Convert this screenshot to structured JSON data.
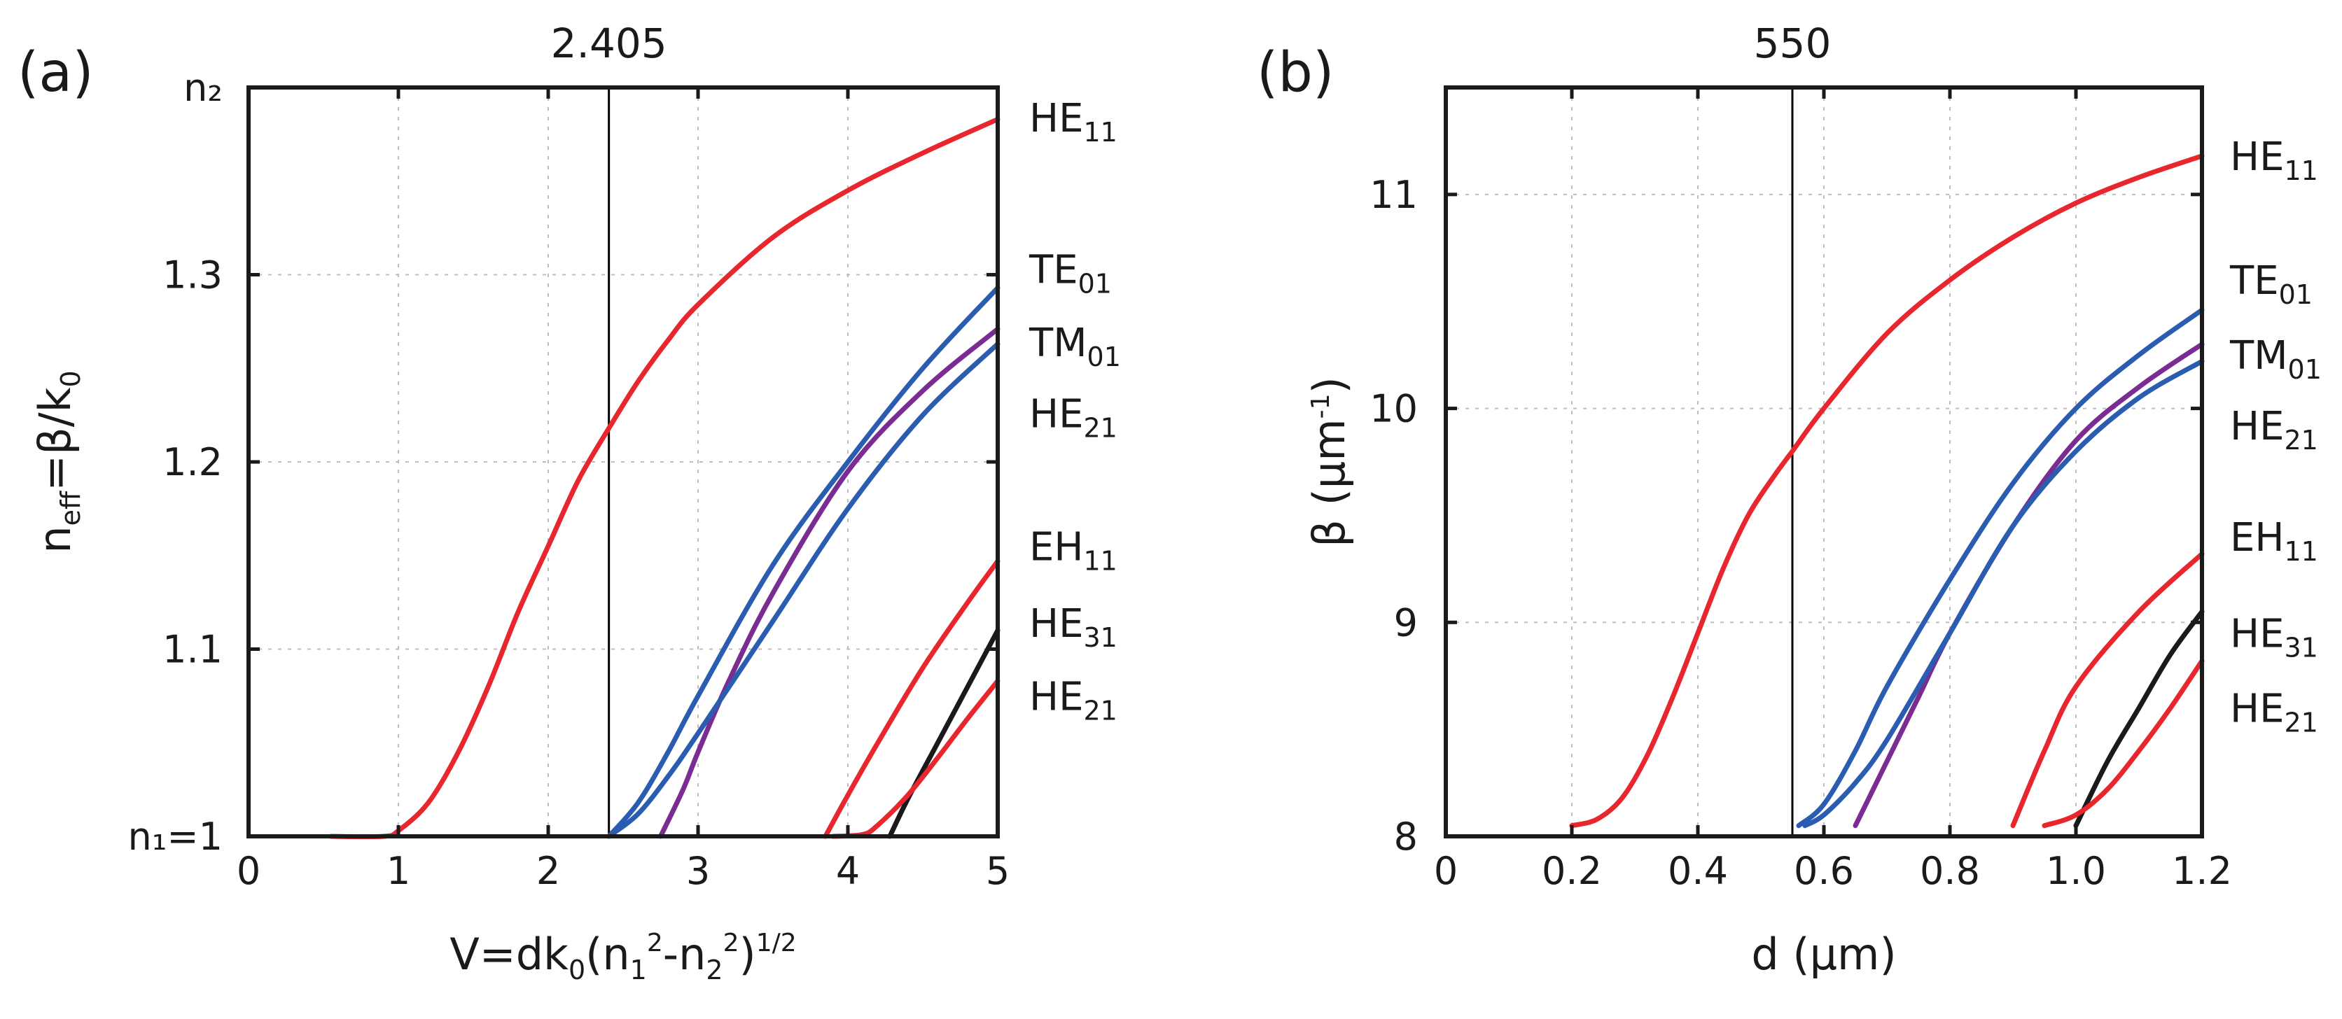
{
  "colors": {
    "red": "#e8262d",
    "blue": "#2a5db0",
    "purple": "#7b2c93",
    "black": "#1a1a1a"
  },
  "chart_data": [
    {
      "type": "line",
      "panel_label": "(a)",
      "xlabel": "V=dk0(n1²-n2²)1/2",
      "ylabel": "neff=β/k0",
      "xlim": [
        0,
        5
      ],
      "ylim": [
        1.0,
        1.4
      ],
      "xticks": [
        0,
        1,
        2,
        3,
        4,
        5
      ],
      "xtick_labels": [
        "0",
        "1",
        "2",
        "3",
        "4",
        "5"
      ],
      "yticks": [
        1.0,
        1.1,
        1.2,
        1.3,
        1.4
      ],
      "ytick_labels": [
        "n₁=1",
        "1.1",
        "1.2",
        "1.3",
        "n₂"
      ],
      "vline": {
        "x": 2.405,
        "label": "2.405"
      },
      "series": [
        {
          "name": "HE11",
          "color": "red",
          "x": [
            0.55,
            0.9,
            1.0,
            1.2,
            1.4,
            1.6,
            1.8,
            2.0,
            2.2,
            2.405,
            2.6,
            2.8,
            3.0,
            3.5,
            4.0,
            4.5,
            5.0
          ],
          "y": [
            1.0,
            1.0,
            1.003,
            1.018,
            1.045,
            1.08,
            1.12,
            1.155,
            1.19,
            1.218,
            1.243,
            1.265,
            1.284,
            1.32,
            1.345,
            1.365,
            1.383
          ]
        },
        {
          "name": "TE01",
          "color": "blue",
          "x": [
            2.405,
            2.6,
            2.8,
            3.0,
            3.5,
            4.0,
            4.5,
            5.0
          ],
          "y": [
            1.0,
            1.018,
            1.045,
            1.075,
            1.145,
            1.2,
            1.25,
            1.293
          ]
        },
        {
          "name": "TM01",
          "color": "purple",
          "x": [
            2.75,
            2.9,
            3.0,
            3.2,
            3.5,
            4.0,
            4.5,
            5.0
          ],
          "y": [
            1.0,
            1.025,
            1.045,
            1.082,
            1.13,
            1.195,
            1.238,
            1.271
          ]
        },
        {
          "name": "HE21",
          "color": "blue",
          "x": [
            2.405,
            2.6,
            2.8,
            3.0,
            3.5,
            4.0,
            4.5,
            5.0
          ],
          "y": [
            1.0,
            1.012,
            1.032,
            1.055,
            1.115,
            1.175,
            1.225,
            1.263
          ]
        },
        {
          "name": "EH11",
          "color": "red",
          "x": [
            3.85,
            4.0,
            4.2,
            4.5,
            4.8,
            5.0
          ],
          "y": [
            1.0,
            1.022,
            1.05,
            1.09,
            1.125,
            1.147
          ]
        },
        {
          "name": "HE31",
          "color": "black",
          "x": [
            4.28,
            4.4,
            4.6,
            4.8,
            5.0
          ],
          "y": [
            1.0,
            1.02,
            1.05,
            1.08,
            1.11
          ]
        },
        {
          "name": "HE21",
          "color": "red",
          "x": [
            3.9,
            4.1,
            4.2,
            4.4,
            4.6,
            4.8,
            5.0
          ],
          "y": [
            1.0,
            1.001,
            1.006,
            1.022,
            1.042,
            1.063,
            1.083
          ]
        }
      ],
      "mode_labels": [
        {
          "main": "HE",
          "sub": "11",
          "y": 1.384
        },
        {
          "main": "TE",
          "sub": "01",
          "y": 1.303
        },
        {
          "main": "TM",
          "sub": "01",
          "y": 1.264
        },
        {
          "main": "HE",
          "sub": "21",
          "y": 1.226
        },
        {
          "main": "EH",
          "sub": "11",
          "y": 1.155
        },
        {
          "main": "HE",
          "sub": "31",
          "y": 1.114
        },
        {
          "main": "HE",
          "sub": "21",
          "y": 1.075
        }
      ]
    },
    {
      "type": "line",
      "panel_label": "(b)",
      "xlabel": "d (μm)",
      "ylabel": "β (μm-1)",
      "xlim": [
        0,
        1.2
      ],
      "ylim": [
        8,
        11.5
      ],
      "xticks": [
        0,
        0.2,
        0.4,
        0.6,
        0.8,
        1.0,
        1.2
      ],
      "xtick_labels": [
        "0",
        "0.2",
        "0.4",
        "0.6",
        "0.8",
        "1.0",
        "1.2"
      ],
      "yticks": [
        8,
        9,
        10,
        11
      ],
      "ytick_labels": [
        "8",
        "9",
        "10",
        "11"
      ],
      "vline": {
        "x": 0.55,
        "label": "550"
      },
      "series": [
        {
          "name": "HE11",
          "color": "red",
          "x": [
            0.2,
            0.24,
            0.28,
            0.32,
            0.36,
            0.4,
            0.44,
            0.48,
            0.52,
            0.55,
            0.6,
            0.7,
            0.8,
            0.9,
            1.0,
            1.1,
            1.2
          ],
          "y": [
            8.05,
            8.08,
            8.18,
            8.38,
            8.65,
            8.95,
            9.25,
            9.5,
            9.68,
            9.8,
            10.0,
            10.35,
            10.6,
            10.8,
            10.96,
            11.08,
            11.18
          ]
        },
        {
          "name": "TE01",
          "color": "blue",
          "x": [
            0.56,
            0.6,
            0.65,
            0.7,
            0.8,
            0.9,
            1.0,
            1.1,
            1.2
          ],
          "y": [
            8.05,
            8.15,
            8.4,
            8.7,
            9.2,
            9.65,
            10.0,
            10.25,
            10.46
          ]
        },
        {
          "name": "TM01",
          "color": "purple",
          "x": [
            0.65,
            0.7,
            0.75,
            0.8,
            0.9,
            1.0,
            1.1,
            1.2
          ],
          "y": [
            8.05,
            8.35,
            8.65,
            8.95,
            9.45,
            9.85,
            10.1,
            10.3
          ]
        },
        {
          "name": "HE21",
          "color": "blue",
          "x": [
            0.57,
            0.6,
            0.65,
            0.7,
            0.8,
            0.9,
            1.0,
            1.1,
            1.2
          ],
          "y": [
            8.05,
            8.1,
            8.25,
            8.45,
            8.95,
            9.45,
            9.8,
            10.05,
            10.22
          ]
        },
        {
          "name": "EH11",
          "color": "red",
          "x": [
            0.9,
            0.95,
            1.0,
            1.1,
            1.2
          ],
          "y": [
            8.05,
            8.4,
            8.7,
            9.05,
            9.32
          ]
        },
        {
          "name": "HE31",
          "color": "black",
          "x": [
            1.0,
            1.05,
            1.1,
            1.15,
            1.2
          ],
          "y": [
            8.05,
            8.35,
            8.6,
            8.85,
            9.05
          ]
        },
        {
          "name": "HE21",
          "color": "red",
          "x": [
            0.95,
            1.0,
            1.05,
            1.1,
            1.15,
            1.2
          ],
          "y": [
            8.05,
            8.1,
            8.22,
            8.4,
            8.6,
            8.82
          ]
        }
      ],
      "mode_labels": [
        {
          "main": "HE",
          "sub": "11",
          "y": 11.18
        },
        {
          "main": "TE",
          "sub": "01",
          "y": 10.6
        },
        {
          "main": "TM",
          "sub": "01",
          "y": 10.25
        },
        {
          "main": "HE",
          "sub": "21",
          "y": 9.92
        },
        {
          "main": "EH",
          "sub": "11",
          "y": 9.4
        },
        {
          "main": "HE",
          "sub": "31",
          "y": 8.95
        },
        {
          "main": "HE",
          "sub": "21",
          "y": 8.6
        }
      ]
    }
  ]
}
